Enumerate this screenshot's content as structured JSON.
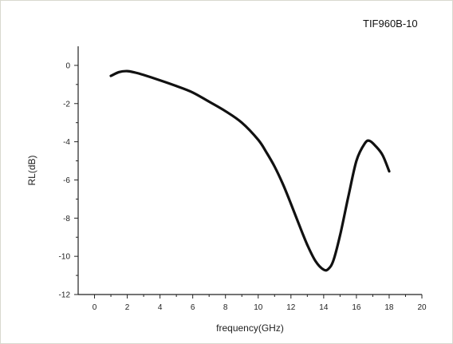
{
  "image_tag": "TIF960B-10",
  "chart_data": {
    "type": "line",
    "xlabel": "frequency(GHz)",
    "ylabel": "RL(dB)",
    "xlim": [
      -1,
      20
    ],
    "ylim": [
      -12,
      1
    ],
    "xticks": [
      0,
      2,
      4,
      6,
      8,
      10,
      12,
      14,
      16,
      18,
      20
    ],
    "yticks": [
      0,
      -2,
      -4,
      -6,
      -8,
      -10,
      -12
    ],
    "grid": false,
    "colors": {
      "line": "#111111",
      "axis": "#222222"
    },
    "series": [
      {
        "x": [
          1.0,
          1.5,
          2.0,
          2.5,
          3.0,
          4.0,
          5.0,
          6.0,
          7.0,
          8.0,
          9.0,
          10.0,
          10.5,
          11.0,
          11.5,
          12.0,
          12.5,
          13.0,
          13.5,
          14.0,
          14.3,
          14.6,
          15.0,
          15.5,
          16.0,
          16.5,
          16.8,
          17.2,
          17.6,
          18.0
        ],
        "y": [
          -0.55,
          -0.35,
          -0.3,
          -0.38,
          -0.5,
          -0.78,
          -1.08,
          -1.42,
          -1.9,
          -2.4,
          -3.0,
          -3.9,
          -4.55,
          -5.3,
          -6.2,
          -7.25,
          -8.35,
          -9.4,
          -10.25,
          -10.7,
          -10.65,
          -10.2,
          -8.9,
          -6.9,
          -5.0,
          -4.1,
          -3.95,
          -4.25,
          -4.7,
          -5.55
        ]
      }
    ]
  }
}
